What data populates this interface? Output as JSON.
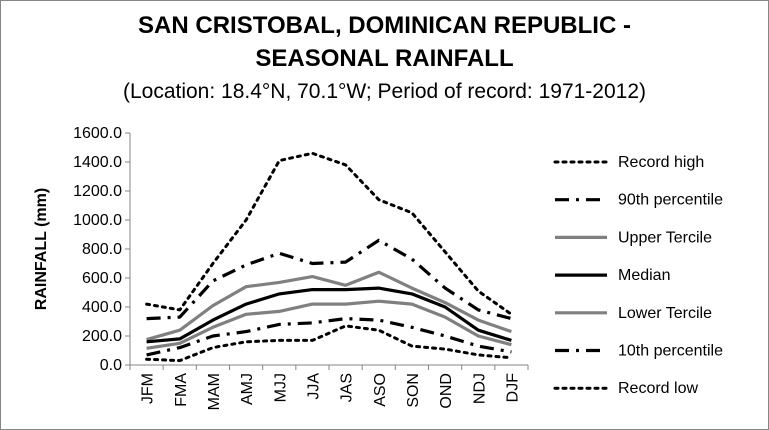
{
  "chart_data": {
    "type": "line",
    "title_line1": "SAN CRISTOBAL, DOMINICAN REPUBLIC -",
    "title_line2": "SEASONAL RAINFALL",
    "subtitle": "(Location: 18.4°N, 70.1°W; Period of record: 1971-2012)",
    "xlabel": "",
    "ylabel": "RAINFALL (mm)",
    "ylim": [
      0,
      1600
    ],
    "ytick_step": 200,
    "grid": false,
    "legend_position": "right",
    "categories": [
      "JFM",
      "FMA",
      "MAM",
      "AMJ",
      "MJJ",
      "JJA",
      "JAS",
      "ASO",
      "SON",
      "OND",
      "NDJ",
      "DJF"
    ],
    "series": [
      {
        "name": "Record high",
        "style": "dotted",
        "color": "#000000",
        "values": [
          420,
          380,
          700,
          1000,
          1410,
          1460,
          1380,
          1140,
          1050,
          780,
          510,
          350
        ]
      },
      {
        "name": "90th percentile",
        "style": "dashdot",
        "color": "#000000",
        "values": [
          320,
          330,
          580,
          690,
          770,
          700,
          710,
          860,
          730,
          530,
          380,
          320
        ]
      },
      {
        "name": "Upper Tercile",
        "style": "solid",
        "color": "#808080",
        "values": [
          175,
          240,
          410,
          540,
          570,
          610,
          550,
          640,
          530,
          430,
          310,
          230
        ]
      },
      {
        "name": "Median",
        "style": "solid",
        "color": "#000000",
        "values": [
          160,
          180,
          310,
          420,
          490,
          520,
          520,
          530,
          490,
          400,
          240,
          170
        ]
      },
      {
        "name": "Lower Tercile",
        "style": "solid",
        "color": "#808080",
        "values": [
          115,
          150,
          260,
          350,
          370,
          420,
          420,
          440,
          420,
          330,
          200,
          140
        ]
      },
      {
        "name": "10th percentile",
        "style": "dashdot",
        "color": "#000000",
        "values": [
          70,
          120,
          200,
          230,
          280,
          290,
          320,
          310,
          260,
          200,
          130,
          90
        ]
      },
      {
        "name": "Record low",
        "style": "dotted",
        "color": "#000000",
        "values": [
          40,
          30,
          120,
          160,
          170,
          170,
          270,
          240,
          130,
          110,
          70,
          50
        ]
      }
    ]
  }
}
